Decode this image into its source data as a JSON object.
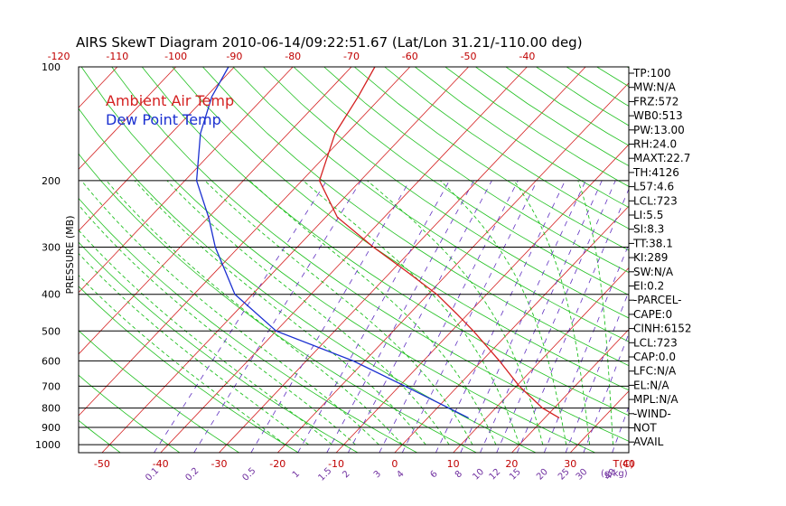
{
  "chart_data": {
    "type": "line",
    "title": "AIRS SkewT Diagram 2010-06-14/09:22:51.67 (Lat/Lon 31.21/-110.00 deg)",
    "ylabel": "PRESSURE (MB)",
    "xlabel_bottom_unit": "T(C)",
    "mixing_ratio_unit": "(g/kg)",
    "y_scale": "log",
    "ylim": [
      1050,
      100
    ],
    "xlim_bottom": [
      -54,
      40
    ],
    "pressure_ticks": [
      100,
      200,
      300,
      400,
      500,
      600,
      700,
      800,
      900,
      1000
    ],
    "bottom_ticks": [
      -50,
      -40,
      -30,
      -20,
      -10,
      0,
      10,
      20,
      30,
      40
    ],
    "top_ticks": [
      -120,
      -110,
      -100,
      -90,
      -80,
      -70,
      -60,
      -50,
      -40
    ],
    "mixing_ticks": [
      "0.1",
      "0.2",
      "0.5",
      "1",
      "1.5",
      "2",
      "3",
      "4",
      "6",
      "8",
      "10",
      "12",
      "15",
      "20",
      "25",
      "30",
      "40"
    ],
    "legend": [
      {
        "name": "Ambient Air Temp",
        "color": "#d42020"
      },
      {
        "name": "Dew Point Temp",
        "color": "#1a2fd0"
      }
    ],
    "series": [
      {
        "name": "Ambient Air Temp",
        "color": "#d42020",
        "points": [
          {
            "p": 850,
            "t": 22.5
          },
          {
            "p": 800,
            "t": 18
          },
          {
            "p": 700,
            "t": 10.5
          },
          {
            "p": 600,
            "t": 3
          },
          {
            "p": 500,
            "t": -6.3
          },
          {
            "p": 450,
            "t": -12
          },
          {
            "p": 400,
            "t": -18.5
          },
          {
            "p": 350,
            "t": -27
          },
          {
            "p": 300,
            "t": -37
          },
          {
            "p": 250,
            "t": -48
          },
          {
            "p": 200,
            "t": -57
          },
          {
            "p": 150,
            "t": -62
          },
          {
            "p": 120,
            "t": -64
          },
          {
            "p": 100,
            "t": -66
          }
        ]
      },
      {
        "name": "Dew Point Temp",
        "color": "#1a2fd0",
        "points": [
          {
            "p": 850,
            "t": 7
          },
          {
            "p": 800,
            "t": 2
          },
          {
            "p": 700,
            "t": -9
          },
          {
            "p": 600,
            "t": -22
          },
          {
            "p": 500,
            "t": -40
          },
          {
            "p": 400,
            "t": -53
          },
          {
            "p": 300,
            "t": -64
          },
          {
            "p": 250,
            "t": -70
          },
          {
            "p": 200,
            "t": -78
          },
          {
            "p": 150,
            "t": -85
          },
          {
            "p": 120,
            "t": -89
          },
          {
            "p": 100,
            "t": -91
          }
        ]
      }
    ],
    "indices": [
      "TP:100",
      "MW:N/A",
      "FRZ:572",
      "WB0:513",
      "PW:13.00",
      "RH:24.0",
      "MAXT:22.7",
      "TH:4126",
      "L57:4.6",
      "LCL:723",
      "LI:5.5",
      "SI:8.3",
      "TT:38.1",
      "KI:289",
      "SW:N/A",
      "EI:0.2",
      "-PARCEL-",
      "CAPE:0",
      "CINH:6152",
      "LCL:723",
      "CAP:0.0",
      "LFC:N/A",
      "EL:N/A",
      "MPL:N/A",
      "-WIND-",
      "NOT",
      "AVAIL"
    ],
    "colors": {
      "isotherm": "#d42020",
      "dry_adiabat": "#20c020",
      "moist_adiabat": "#20c020",
      "mixing_ratio": "#6030c0",
      "isobar": "#000000"
    }
  }
}
